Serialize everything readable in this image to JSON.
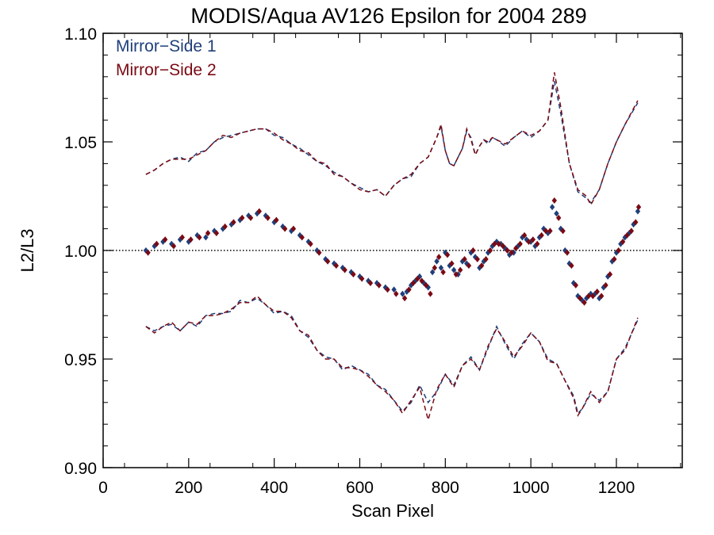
{
  "chart_data": {
    "type": "scatter",
    "title": "MODIS/Aqua AV126 Epsilon for 2004 289",
    "xlabel": "Scan Pixel",
    "ylabel": "L2/L3",
    "xlim": [
      0,
      1354
    ],
    "ylim": [
      0.9,
      1.1
    ],
    "x_ticks": [
      0,
      200,
      400,
      600,
      800,
      1000,
      1200
    ],
    "x_tick_labels": [
      "0",
      "200",
      "400",
      "600",
      "800",
      "1000",
      "1200"
    ],
    "y_ticks": [
      0.9,
      0.95,
      1.0,
      1.05,
      1.1
    ],
    "y_tick_labels": [
      "0.90",
      "0.95",
      "1.00",
      "1.05",
      "1.10"
    ],
    "reference_line": 1.0,
    "legend_placement": "top-left",
    "colors": {
      "ms1": "#1f3f7a",
      "ms2": "#7a0a14"
    },
    "series": [
      {
        "name": "Mirror−Side 1",
        "color": "#1f3f7a",
        "marker": "diamond",
        "x": [
          100,
          120,
          140,
          160,
          180,
          200,
          220,
          240,
          260,
          280,
          300,
          320,
          340,
          360,
          380,
          400,
          420,
          440,
          460,
          480,
          500,
          520,
          540,
          560,
          580,
          600,
          620,
          640,
          660,
          680,
          700,
          710,
          720,
          730,
          740,
          750,
          760,
          770,
          780,
          790,
          800,
          810,
          820,
          830,
          840,
          850,
          860,
          870,
          880,
          890,
          900,
          910,
          920,
          930,
          940,
          950,
          960,
          970,
          980,
          990,
          1000,
          1010,
          1020,
          1030,
          1040,
          1050,
          1060,
          1070,
          1080,
          1090,
          1100,
          1110,
          1120,
          1130,
          1140,
          1150,
          1160,
          1170,
          1180,
          1190,
          1200,
          1210,
          1220,
          1230,
          1240,
          1250
        ],
        "y": [
          1.0,
          1.002,
          1.004,
          1.003,
          1.005,
          1.004,
          1.007,
          1.006,
          1.009,
          1.01,
          1.012,
          1.014,
          1.016,
          1.017,
          1.016,
          1.013,
          1.011,
          1.009,
          1.007,
          1.004,
          1.0,
          0.996,
          0.994,
          0.992,
          0.99,
          0.988,
          0.986,
          0.985,
          0.983,
          0.982,
          0.98,
          0.981,
          0.984,
          0.986,
          0.988,
          0.985,
          0.983,
          0.99,
          0.995,
          0.992,
          0.999,
          0.993,
          0.991,
          0.989,
          0.995,
          0.994,
          0.999,
          0.997,
          0.992,
          0.995,
          0.999,
          1.002,
          1.004,
          1.003,
          1.001,
          0.998,
          0.999,
          1.002,
          1.006,
          1.005,
          1.004,
          1.002,
          1.006,
          1.01,
          1.008,
          1.02,
          1.017,
          1.01,
          1.0,
          0.994,
          0.985,
          0.979,
          0.977,
          0.978,
          0.98,
          0.98,
          0.978,
          0.983,
          0.988,
          0.995,
          0.999,
          1.003,
          1.006,
          1.008,
          1.012,
          1.018
        ]
      },
      {
        "name": "Mirror−Side 2",
        "color": "#7a0a14",
        "marker": "diamond",
        "x": [
          105,
          125,
          145,
          165,
          185,
          205,
          225,
          245,
          265,
          285,
          305,
          325,
          345,
          365,
          385,
          405,
          425,
          445,
          465,
          485,
          505,
          525,
          545,
          565,
          585,
          605,
          625,
          645,
          665,
          685,
          705,
          715,
          725,
          735,
          745,
          755,
          765,
          775,
          785,
          795,
          805,
          815,
          825,
          835,
          845,
          855,
          865,
          875,
          885,
          895,
          905,
          915,
          925,
          935,
          945,
          955,
          965,
          975,
          985,
          995,
          1005,
          1015,
          1025,
          1035,
          1045,
          1055,
          1065,
          1075,
          1085,
          1095,
          1105,
          1115,
          1125,
          1135,
          1145,
          1155,
          1165,
          1175,
          1185,
          1195,
          1205,
          1215,
          1225,
          1235,
          1245,
          1252
        ],
        "y": [
          0.999,
          1.003,
          1.005,
          1.002,
          1.006,
          1.005,
          1.006,
          1.008,
          1.008,
          1.011,
          1.013,
          1.015,
          1.015,
          1.018,
          1.015,
          1.014,
          1.01,
          1.01,
          1.006,
          1.003,
          0.999,
          0.995,
          0.993,
          0.991,
          0.989,
          0.987,
          0.985,
          0.984,
          0.982,
          0.98,
          0.978,
          0.982,
          0.985,
          0.987,
          0.986,
          0.984,
          0.98,
          0.992,
          0.997,
          0.99,
          0.998,
          0.994,
          0.989,
          0.991,
          0.996,
          0.993,
          1.0,
          0.996,
          0.993,
          0.996,
          1.0,
          1.003,
          1.003,
          1.002,
          1.0,
          0.999,
          1.001,
          1.003,
          1.007,
          1.004,
          1.005,
          1.003,
          1.007,
          1.009,
          1.009,
          1.023,
          1.015,
          1.009,
          0.999,
          0.993,
          0.984,
          0.978,
          0.976,
          0.979,
          0.979,
          0.981,
          0.979,
          0.984,
          0.989,
          0.996,
          1.0,
          1.004,
          1.007,
          1.009,
          1.013,
          1.02
        ]
      },
      {
        "name": "",
        "color": "#1f3f7a",
        "style": "dashed",
        "x": [
          100,
          120,
          140,
          160,
          180,
          200,
          220,
          240,
          260,
          280,
          300,
          320,
          340,
          360,
          380,
          400,
          420,
          440,
          460,
          480,
          500,
          520,
          540,
          560,
          580,
          600,
          620,
          640,
          660,
          680,
          700,
          720,
          740,
          760,
          780,
          790,
          800,
          810,
          820,
          840,
          850,
          860,
          870,
          880,
          890,
          900,
          910,
          920,
          940,
          960,
          980,
          1000,
          1020,
          1040,
          1055,
          1070,
          1090,
          1110,
          1130,
          1140,
          1160,
          1180,
          1200,
          1220,
          1250
        ],
        "y": [
          1.035,
          1.037,
          1.04,
          1.042,
          1.043,
          1.041,
          1.045,
          1.046,
          1.05,
          1.052,
          1.053,
          1.054,
          1.055,
          1.056,
          1.056,
          1.053,
          1.052,
          1.049,
          1.047,
          1.044,
          1.041,
          1.039,
          1.036,
          1.034,
          1.031,
          1.029,
          1.027,
          1.028,
          1.025,
          1.03,
          1.033,
          1.034,
          1.04,
          1.043,
          1.052,
          1.057,
          1.046,
          1.04,
          1.039,
          1.047,
          1.055,
          1.052,
          1.044,
          1.048,
          1.051,
          1.049,
          1.052,
          1.051,
          1.048,
          1.052,
          1.055,
          1.052,
          1.055,
          1.06,
          1.078,
          1.063,
          1.04,
          1.027,
          1.024,
          1.022,
          1.028,
          1.04,
          1.05,
          1.058,
          1.068
        ]
      },
      {
        "name": "",
        "color": "#7a0a14",
        "style": "dashed",
        "x": [
          100,
          120,
          140,
          160,
          180,
          200,
          220,
          240,
          260,
          280,
          300,
          320,
          340,
          360,
          380,
          400,
          420,
          440,
          460,
          480,
          500,
          520,
          540,
          560,
          580,
          600,
          620,
          640,
          660,
          680,
          700,
          720,
          740,
          760,
          780,
          790,
          800,
          810,
          820,
          840,
          850,
          860,
          870,
          880,
          890,
          900,
          910,
          920,
          940,
          960,
          980,
          1000,
          1020,
          1040,
          1055,
          1070,
          1090,
          1110,
          1130,
          1140,
          1160,
          1180,
          1200,
          1220,
          1250
        ],
        "y": [
          1.035,
          1.037,
          1.04,
          1.042,
          1.042,
          1.042,
          1.044,
          1.046,
          1.05,
          1.053,
          1.052,
          1.054,
          1.055,
          1.056,
          1.056,
          1.054,
          1.051,
          1.049,
          1.046,
          1.045,
          1.041,
          1.04,
          1.035,
          1.034,
          1.031,
          1.028,
          1.027,
          1.028,
          1.025,
          1.03,
          1.033,
          1.035,
          1.04,
          1.043,
          1.052,
          1.058,
          1.046,
          1.04,
          1.039,
          1.047,
          1.056,
          1.051,
          1.044,
          1.048,
          1.051,
          1.05,
          1.052,
          1.051,
          1.049,
          1.052,
          1.055,
          1.053,
          1.055,
          1.06,
          1.082,
          1.066,
          1.04,
          1.028,
          1.025,
          1.021,
          1.028,
          1.04,
          1.05,
          1.058,
          1.069
        ]
      },
      {
        "name": "",
        "color": "#1f3f7a",
        "style": "dashed",
        "x": [
          100,
          120,
          140,
          160,
          180,
          200,
          220,
          240,
          260,
          280,
          300,
          320,
          340,
          360,
          380,
          400,
          420,
          440,
          460,
          480,
          500,
          520,
          540,
          560,
          580,
          600,
          620,
          640,
          660,
          680,
          700,
          720,
          740,
          760,
          780,
          800,
          820,
          840,
          860,
          880,
          900,
          920,
          940,
          960,
          980,
          1000,
          1020,
          1040,
          1060,
          1080,
          1100,
          1110,
          1120,
          1140,
          1160,
          1180,
          1200,
          1220,
          1250
        ],
        "y": [
          0.965,
          0.963,
          0.965,
          0.966,
          0.963,
          0.967,
          0.965,
          0.97,
          0.971,
          0.971,
          0.972,
          0.977,
          0.976,
          0.978,
          0.975,
          0.971,
          0.972,
          0.97,
          0.963,
          0.96,
          0.954,
          0.951,
          0.95,
          0.945,
          0.947,
          0.945,
          0.943,
          0.938,
          0.936,
          0.931,
          0.926,
          0.93,
          0.938,
          0.93,
          0.935,
          0.943,
          0.938,
          0.947,
          0.951,
          0.945,
          0.955,
          0.965,
          0.957,
          0.95,
          0.957,
          0.962,
          0.958,
          0.95,
          0.948,
          0.94,
          0.933,
          0.925,
          0.927,
          0.934,
          0.931,
          0.935,
          0.95,
          0.955,
          0.968
        ]
      },
      {
        "name": "",
        "color": "#7a0a14",
        "style": "dashed",
        "x": [
          100,
          120,
          140,
          160,
          180,
          200,
          220,
          240,
          260,
          280,
          300,
          320,
          340,
          360,
          380,
          400,
          420,
          440,
          460,
          480,
          500,
          520,
          540,
          560,
          580,
          600,
          620,
          640,
          660,
          680,
          700,
          720,
          740,
          760,
          780,
          800,
          820,
          840,
          860,
          880,
          900,
          920,
          940,
          960,
          980,
          1000,
          1020,
          1040,
          1060,
          1080,
          1100,
          1110,
          1120,
          1140,
          1160,
          1180,
          1200,
          1220,
          1250
        ],
        "y": [
          0.965,
          0.962,
          0.965,
          0.967,
          0.963,
          0.967,
          0.966,
          0.97,
          0.97,
          0.971,
          0.973,
          0.976,
          0.976,
          0.979,
          0.975,
          0.972,
          0.972,
          0.969,
          0.963,
          0.961,
          0.954,
          0.95,
          0.95,
          0.946,
          0.946,
          0.945,
          0.942,
          0.938,
          0.935,
          0.931,
          0.925,
          0.931,
          0.937,
          0.922,
          0.936,
          0.943,
          0.937,
          0.947,
          0.95,
          0.945,
          0.956,
          0.964,
          0.958,
          0.951,
          0.956,
          0.962,
          0.958,
          0.949,
          0.948,
          0.94,
          0.932,
          0.924,
          0.927,
          0.935,
          0.93,
          0.935,
          0.95,
          0.954,
          0.969
        ]
      }
    ]
  }
}
